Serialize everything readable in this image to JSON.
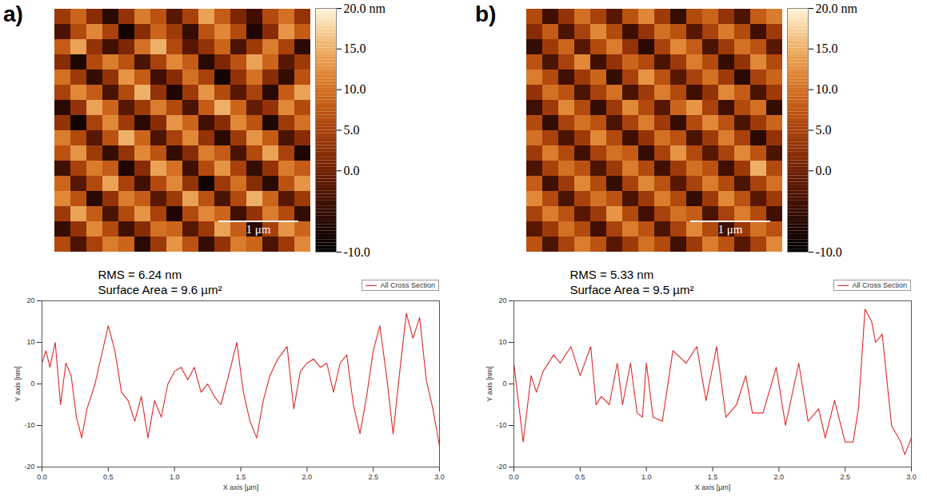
{
  "chart_data": [
    {
      "type": "heatmap",
      "title": "a)",
      "tick_labels": false,
      "annotations": [
        {
          "text": "1 μm"
        }
      ],
      "colorbar_range": [
        -10,
        20
      ],
      "colorbar_ticks": [
        {
          "value": 20,
          "label": "20.0 nm"
        },
        {
          "value": 15,
          "label": "15.0"
        },
        {
          "value": 10,
          "label": "10.0"
        },
        {
          "value": 5,
          "label": "5.0"
        },
        {
          "value": 0,
          "label": "0.0"
        },
        {
          "value": -10,
          "label": "-10.0"
        }
      ],
      "cells": [
        [
          4,
          9,
          2,
          -6,
          3,
          11,
          7,
          -2,
          5,
          14,
          8,
          1,
          -4,
          6,
          10,
          3
        ],
        [
          -3,
          6,
          12,
          5,
          -8,
          2,
          9,
          4,
          -5,
          7,
          12,
          6,
          -7,
          2,
          13,
          8
        ],
        [
          8,
          14,
          3,
          -4,
          1,
          10,
          15,
          6,
          -2,
          3,
          9,
          -3,
          4,
          11,
          5,
          -6
        ],
        [
          2,
          -7,
          6,
          11,
          7,
          -3,
          5,
          12,
          8,
          -6,
          1,
          7,
          14,
          9,
          -2,
          4
        ],
        [
          10,
          4,
          -5,
          3,
          13,
          8,
          -4,
          2,
          10,
          5,
          -8,
          3,
          10,
          2,
          -5,
          7
        ],
        [
          5,
          12,
          8,
          -3,
          6,
          15,
          3,
          -7,
          4,
          13,
          6,
          -2,
          5,
          -6,
          8,
          14
        ],
        [
          -6,
          3,
          14,
          9,
          -2,
          4,
          11,
          6,
          -3,
          8,
          15,
          9,
          -1,
          3,
          12,
          6
        ],
        [
          3,
          -8,
          5,
          12,
          4,
          -6,
          2,
          13,
          9,
          -4,
          2,
          12,
          7,
          -7,
          4,
          10
        ],
        [
          11,
          6,
          -2,
          7,
          15,
          9,
          -3,
          5,
          12,
          3,
          -6,
          4,
          13,
          8,
          -3,
          2
        ],
        [
          7,
          13,
          4,
          -5,
          3,
          12,
          7,
          -5,
          2,
          11,
          8,
          -3,
          6,
          14,
          5,
          -7
        ],
        [
          -4,
          5,
          11,
          8,
          -7,
          2,
          14,
          10,
          -4,
          6,
          13,
          5,
          -5,
          3,
          11,
          8
        ],
        [
          9,
          -2,
          6,
          14,
          5,
          -4,
          6,
          12,
          3,
          -8,
          4,
          10,
          2,
          -6,
          7,
          13
        ],
        [
          12,
          7,
          -6,
          3,
          11,
          8,
          -2,
          4,
          14,
          7,
          -3,
          6,
          15,
          9,
          -2,
          4
        ],
        [
          4,
          14,
          8,
          -3,
          6,
          13,
          5,
          -7,
          6,
          12,
          9,
          -4,
          3,
          11,
          6,
          -5
        ],
        [
          -5,
          3,
          12,
          6,
          -4,
          2,
          10,
          9,
          -2,
          4,
          14,
          8,
          -6,
          5,
          13,
          9
        ],
        [
          6,
          -3,
          5,
          11,
          9,
          -6,
          4,
          13,
          7,
          -5,
          3,
          11,
          9,
          -3,
          4,
          12
        ]
      ]
    },
    {
      "type": "line",
      "xlabel": "X axis [µm]",
      "ylabel": "Y axis [nm]",
      "legend": "top-right",
      "grid": false,
      "annotations": [
        {
          "text": "RMS = 6.24 nm"
        },
        {
          "text": "Surface Area = 9.6 µm²"
        }
      ],
      "xlim": [
        0,
        3
      ],
      "xticks": [
        {
          "value": 0,
          "label": "0.0"
        },
        0.5,
        {
          "value": 1,
          "label": "1.0"
        },
        1.5,
        {
          "value": 2,
          "label": "2.0"
        },
        2.5,
        {
          "value": 3,
          "label": "3.0"
        }
      ],
      "ylim": [
        -20,
        20
      ],
      "yticks": [
        -20,
        -10,
        0,
        10,
        20
      ],
      "x": [
        0,
        0.03,
        0.06,
        0.1,
        0.14,
        0.18,
        0.22,
        0.26,
        0.3,
        0.34,
        0.4,
        0.45,
        0.5,
        0.55,
        0.6,
        0.65,
        0.7,
        0.75,
        0.8,
        0.85,
        0.9,
        0.95,
        1.0,
        1.05,
        1.1,
        1.15,
        1.2,
        1.25,
        1.3,
        1.35,
        1.4,
        1.47,
        1.52,
        1.57,
        1.62,
        1.67,
        1.72,
        1.78,
        1.85,
        1.9,
        1.95,
        2.0,
        2.05,
        2.1,
        2.15,
        2.2,
        2.25,
        2.3,
        2.35,
        2.4,
        2.45,
        2.5,
        2.55,
        2.6,
        2.65,
        2.7,
        2.75,
        2.8,
        2.85,
        2.9,
        2.95,
        3.0
      ],
      "series": [
        {
          "name": "All Cross Section",
          "color": "#e0282a",
          "line_style": "solid",
          "values": [
            5,
            8,
            4,
            10,
            -5,
            5,
            2,
            -8,
            -13,
            -6,
            0,
            7,
            14,
            8,
            -2,
            -4,
            -9,
            -3,
            -13,
            -4,
            -8,
            0,
            3,
            4,
            1,
            4,
            -2,
            0,
            -3,
            -5,
            1,
            10,
            -2,
            -9,
            -13,
            -4,
            2,
            6,
            9,
            -6,
            3,
            5,
            6,
            4,
            5,
            -2,
            5,
            7,
            -5,
            -12,
            -3,
            8,
            14,
            2,
            -12,
            3,
            17,
            11,
            16,
            1,
            -6,
            -15
          ]
        }
      ]
    },
    {
      "type": "heatmap",
      "title": "b)",
      "tick_labels": false,
      "annotations": [
        {
          "text": "1 μm"
        }
      ],
      "colorbar_range": [
        -10,
        20
      ],
      "colorbar_ticks": [
        {
          "value": 20,
          "label": "20.0 nm"
        },
        {
          "value": 15,
          "label": "15.0"
        },
        {
          "value": 10,
          "label": "10.0"
        },
        {
          "value": 5,
          "label": "5.0"
        },
        {
          "value": 0,
          "label": "0.0"
        },
        {
          "value": -10,
          "label": "-10.0"
        }
      ],
      "cells": [
        [
          6,
          -4,
          3,
          10,
          5,
          -2,
          7,
          12,
          4,
          -5,
          6,
          9,
          3,
          -3,
          8,
          11
        ],
        [
          2,
          8,
          -3,
          5,
          12,
          6,
          -4,
          3,
          10,
          7,
          -2,
          5,
          11,
          6,
          -4,
          4
        ],
        [
          -5,
          4,
          9,
          -2,
          6,
          11,
          3,
          -6,
          5,
          12,
          8,
          -3,
          4,
          10,
          7,
          -2
        ],
        [
          7,
          -3,
          5,
          12,
          -4,
          3,
          9,
          6,
          -3,
          4,
          11,
          6,
          -5,
          3,
          12,
          6
        ],
        [
          11,
          6,
          -4,
          4,
          9,
          -5,
          5,
          13,
          7,
          -2,
          5,
          10,
          4,
          -6,
          5,
          9
        ],
        [
          3,
          10,
          7,
          -3,
          5,
          10,
          -3,
          4,
          11,
          6,
          -4,
          3,
          12,
          8,
          -3,
          4
        ],
        [
          -4,
          4,
          12,
          6,
          -5,
          4,
          12,
          6,
          -2,
          9,
          13,
          5,
          -4,
          6,
          10,
          -5
        ],
        [
          6,
          -5,
          5,
          10,
          7,
          -3,
          5,
          11,
          4,
          -5,
          6,
          12,
          7,
          -3,
          4,
          9
        ],
        [
          10,
          5,
          -3,
          4,
          12,
          6,
          -4,
          3,
          10,
          7,
          -3,
          4,
          11,
          5,
          -6,
          3
        ],
        [
          4,
          11,
          6,
          -4,
          5,
          10,
          8,
          -5,
          5,
          13,
          6,
          -2,
          5,
          12,
          7,
          -3
        ],
        [
          -3,
          5,
          10,
          7,
          -3,
          4,
          11,
          6,
          -4,
          4,
          10,
          7,
          -4,
          4,
          15,
          6
        ],
        [
          8,
          -4,
          4,
          12,
          6,
          -5,
          5,
          12,
          7,
          -2,
          5,
          11,
          6,
          -3,
          5,
          10
        ],
        [
          12,
          6,
          -3,
          5,
          10,
          7,
          -3,
          4,
          11,
          6,
          -5,
          4,
          12,
          7,
          -2,
          4
        ],
        [
          5,
          11,
          7,
          -2,
          4,
          13,
          6,
          -4,
          5,
          10,
          8,
          -3,
          5,
          11,
          6,
          -4
        ],
        [
          -2,
          4,
          10,
          6,
          -4,
          5,
          11,
          7,
          -3,
          5,
          12,
          6,
          -4,
          4,
          10,
          7
        ],
        [
          7,
          -3,
          5,
          11,
          7,
          -2,
          4,
          10,
          6,
          -4,
          4,
          11,
          7,
          -2,
          5,
          12
        ]
      ]
    },
    {
      "type": "line",
      "xlabel": "X axis [µm]",
      "ylabel": "Y axis [nm]",
      "legend": "top-right",
      "grid": false,
      "annotations": [
        {
          "text": "RMS = 5.33 nm"
        },
        {
          "text": "Surface Area = 9.5 µm²"
        }
      ],
      "xlim": [
        0,
        3
      ],
      "xticks": [
        {
          "value": 0,
          "label": "0.0"
        },
        0.5,
        {
          "value": 1,
          "label": "1.0"
        },
        1.5,
        {
          "value": 2,
          "label": "2.0"
        },
        2.5,
        {
          "value": 3,
          "label": "3.0"
        }
      ],
      "ylim": [
        -20,
        20
      ],
      "yticks": [
        -20,
        -10,
        0,
        10,
        20
      ],
      "x": [
        0,
        0.07,
        0.13,
        0.17,
        0.22,
        0.3,
        0.35,
        0.43,
        0.5,
        0.58,
        0.62,
        0.66,
        0.72,
        0.78,
        0.82,
        0.88,
        0.93,
        0.97,
        1.0,
        1.05,
        1.12,
        1.2,
        1.3,
        1.38,
        1.45,
        1.53,
        1.6,
        1.68,
        1.75,
        1.8,
        1.88,
        1.98,
        2.05,
        2.15,
        2.22,
        2.3,
        2.35,
        2.42,
        2.5,
        2.56,
        2.6,
        2.65,
        2.7,
        2.73,
        2.78,
        2.85,
        2.92,
        2.95,
        3.0
      ],
      "series": [
        {
          "name": "All Cross Section",
          "color": "#e0282a",
          "line_style": "solid",
          "values": [
            5,
            -14,
            2,
            -2,
            3,
            7,
            5,
            9,
            2,
            9,
            -5,
            -3,
            -5,
            5,
            -5,
            5,
            -7,
            -8,
            5,
            -8,
            -9,
            8,
            5,
            9,
            -4,
            9,
            -8,
            -5,
            2,
            -7,
            -7,
            4,
            -10,
            5,
            -9,
            -6,
            -13,
            -4,
            -14,
            -14,
            -6,
            18,
            15,
            10,
            12,
            -10,
            -14,
            -17,
            -13
          ]
        }
      ]
    }
  ]
}
